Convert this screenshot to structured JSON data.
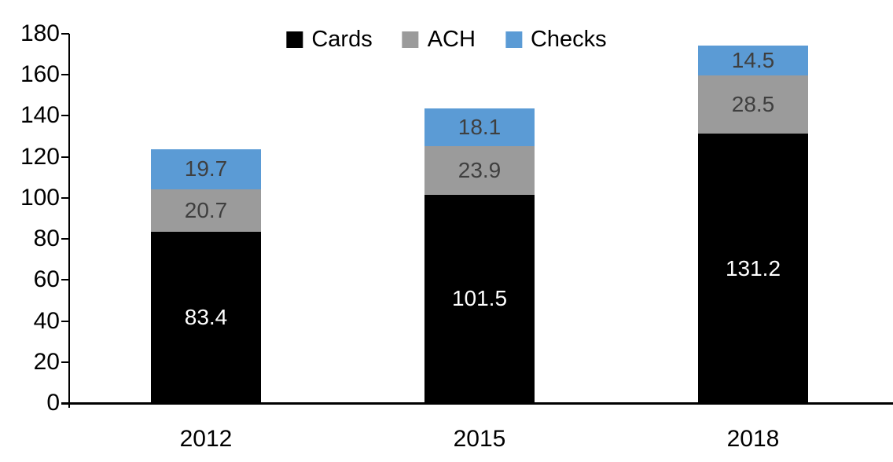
{
  "chart_data": {
    "type": "bar",
    "stacked": true,
    "title": "",
    "xlabel": "",
    "ylabel": "",
    "categories": [
      "2012",
      "2015",
      "2018"
    ],
    "series": [
      {
        "name": "Cards",
        "color": "#000000",
        "label_color": "#FFFFFF",
        "values": [
          83.4,
          101.5,
          131.2
        ]
      },
      {
        "name": "ACH",
        "color": "#9B9B9B",
        "label_color": "#3F3F3F",
        "values": [
          20.7,
          23.9,
          28.5
        ]
      },
      {
        "name": "Checks",
        "color": "#5B9BD5",
        "label_color": "#3F3F3F",
        "values": [
          19.7,
          18.1,
          14.5
        ]
      }
    ],
    "ylim": [
      0,
      180
    ],
    "yticks": [
      0,
      20,
      40,
      60,
      80,
      100,
      120,
      140,
      160,
      180
    ],
    "legend_position": "top-center",
    "legend_labels": [
      "Cards",
      "ACH",
      "Checks"
    ],
    "grid": false,
    "axis_color": "#000000",
    "data_labels_shown": true
  }
}
